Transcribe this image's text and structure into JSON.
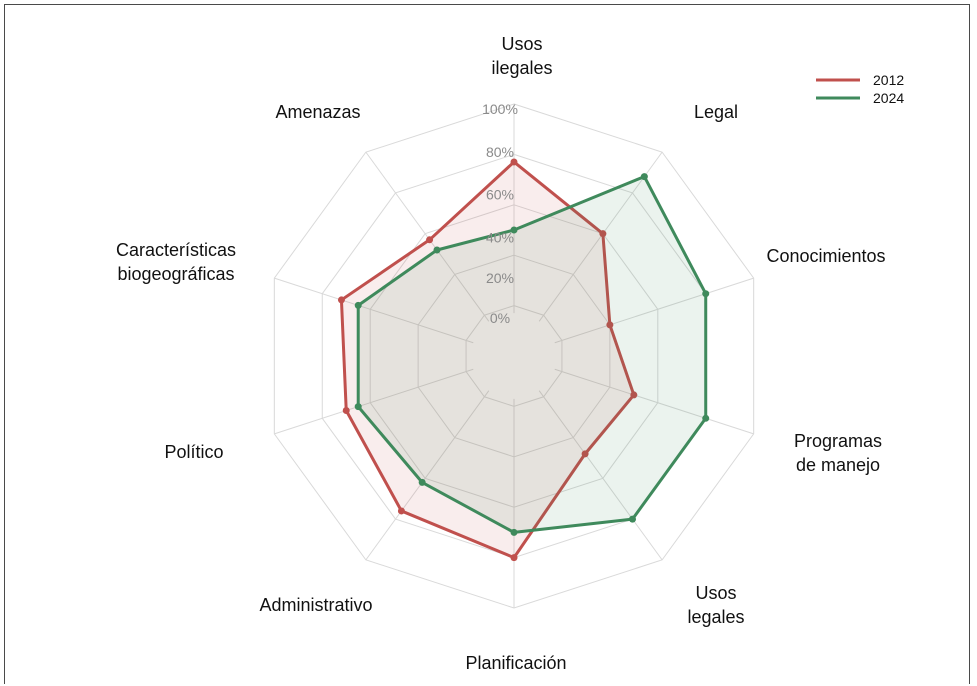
{
  "chart_data": {
    "type": "radar",
    "axes": [
      "Usos\nilegales",
      "Legal",
      "Conocimientos",
      "Programas\nde manejo",
      "Usos\nlegales",
      "Planificación",
      "Administrativo",
      "Político",
      "Características\nbiogeográficas",
      "Amenazas"
    ],
    "r_ticks": [
      "0%",
      "20%",
      "40%",
      "60%",
      "80%",
      "100%"
    ],
    "rlim": [
      0,
      100
    ],
    "grid": true,
    "legend_position": "top-right",
    "series": [
      {
        "name": "2012",
        "color": "#c0504d",
        "values": [
          77,
          60,
          40,
          50,
          48,
          80,
          76,
          70,
          72,
          57
        ]
      },
      {
        "name": "2024",
        "color": "#3f8a5c",
        "values": [
          50,
          88,
          80,
          80,
          80,
          70,
          62,
          65,
          65,
          52
        ]
      }
    ]
  }
}
